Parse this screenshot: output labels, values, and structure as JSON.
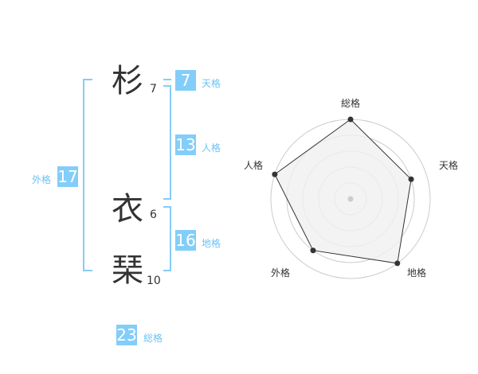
{
  "name": {
    "chars": [
      {
        "char": "杉",
        "strokes": "7"
      },
      {
        "char": "衣",
        "strokes": "6"
      },
      {
        "char": "琹",
        "strokes": "10"
      }
    ]
  },
  "kaku": {
    "tenkaku": {
      "label": "天格",
      "value": "7"
    },
    "jinkaku": {
      "label": "人格",
      "value": "13"
    },
    "chikaku": {
      "label": "地格",
      "value": "16"
    },
    "gaikaku": {
      "label": "外格",
      "value": "17"
    },
    "soukaku": {
      "label": "総格",
      "value": "23"
    }
  },
  "colors": {
    "accent": "#83cdf9",
    "label": "#6bc3f5",
    "radar_fill": "#f0f0f0",
    "radar_line": "#333333",
    "grid": "#cccccc"
  },
  "chart_data": {
    "type": "radar",
    "axes": [
      "総格",
      "天格",
      "地格",
      "外格",
      "人格"
    ],
    "values": [
      5,
      4,
      5,
      4,
      5
    ],
    "range": [
      0,
      5
    ],
    "rings": 5
  }
}
